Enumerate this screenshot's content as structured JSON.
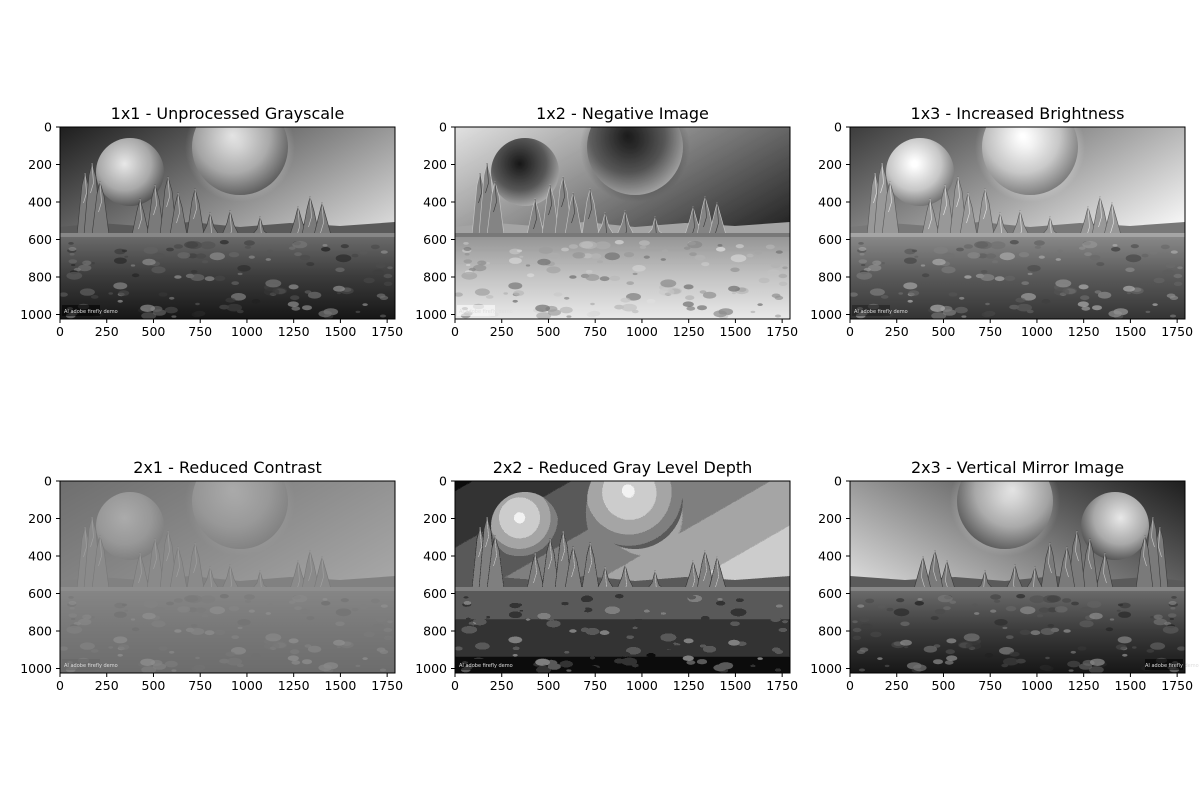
{
  "figure": {
    "panels": [
      {
        "title": "1x1 - Unprocessed Grayscale",
        "variant": "original"
      },
      {
        "title": "1x2 - Negative Image",
        "variant": "negative"
      },
      {
        "title": "1x3 - Increased Brightness",
        "variant": "bright"
      },
      {
        "title": "2x1 - Reduced Contrast",
        "variant": "lowcontrast"
      },
      {
        "title": "2x2 - Reduced Gray Level Depth",
        "variant": "posterized"
      },
      {
        "title": "2x3 - Vertical Mirror Image",
        "variant": "mirror"
      }
    ],
    "x_ticks": [
      "0",
      "250",
      "500",
      "750",
      "1000",
      "1250",
      "1500",
      "1750"
    ],
    "y_ticks": [
      "0",
      "200",
      "400",
      "600",
      "800",
      "1000"
    ],
    "x_range": [
      0,
      1792
    ],
    "y_range": [
      0,
      1024
    ],
    "image_caption": "AI adobe firefly demo"
  }
}
